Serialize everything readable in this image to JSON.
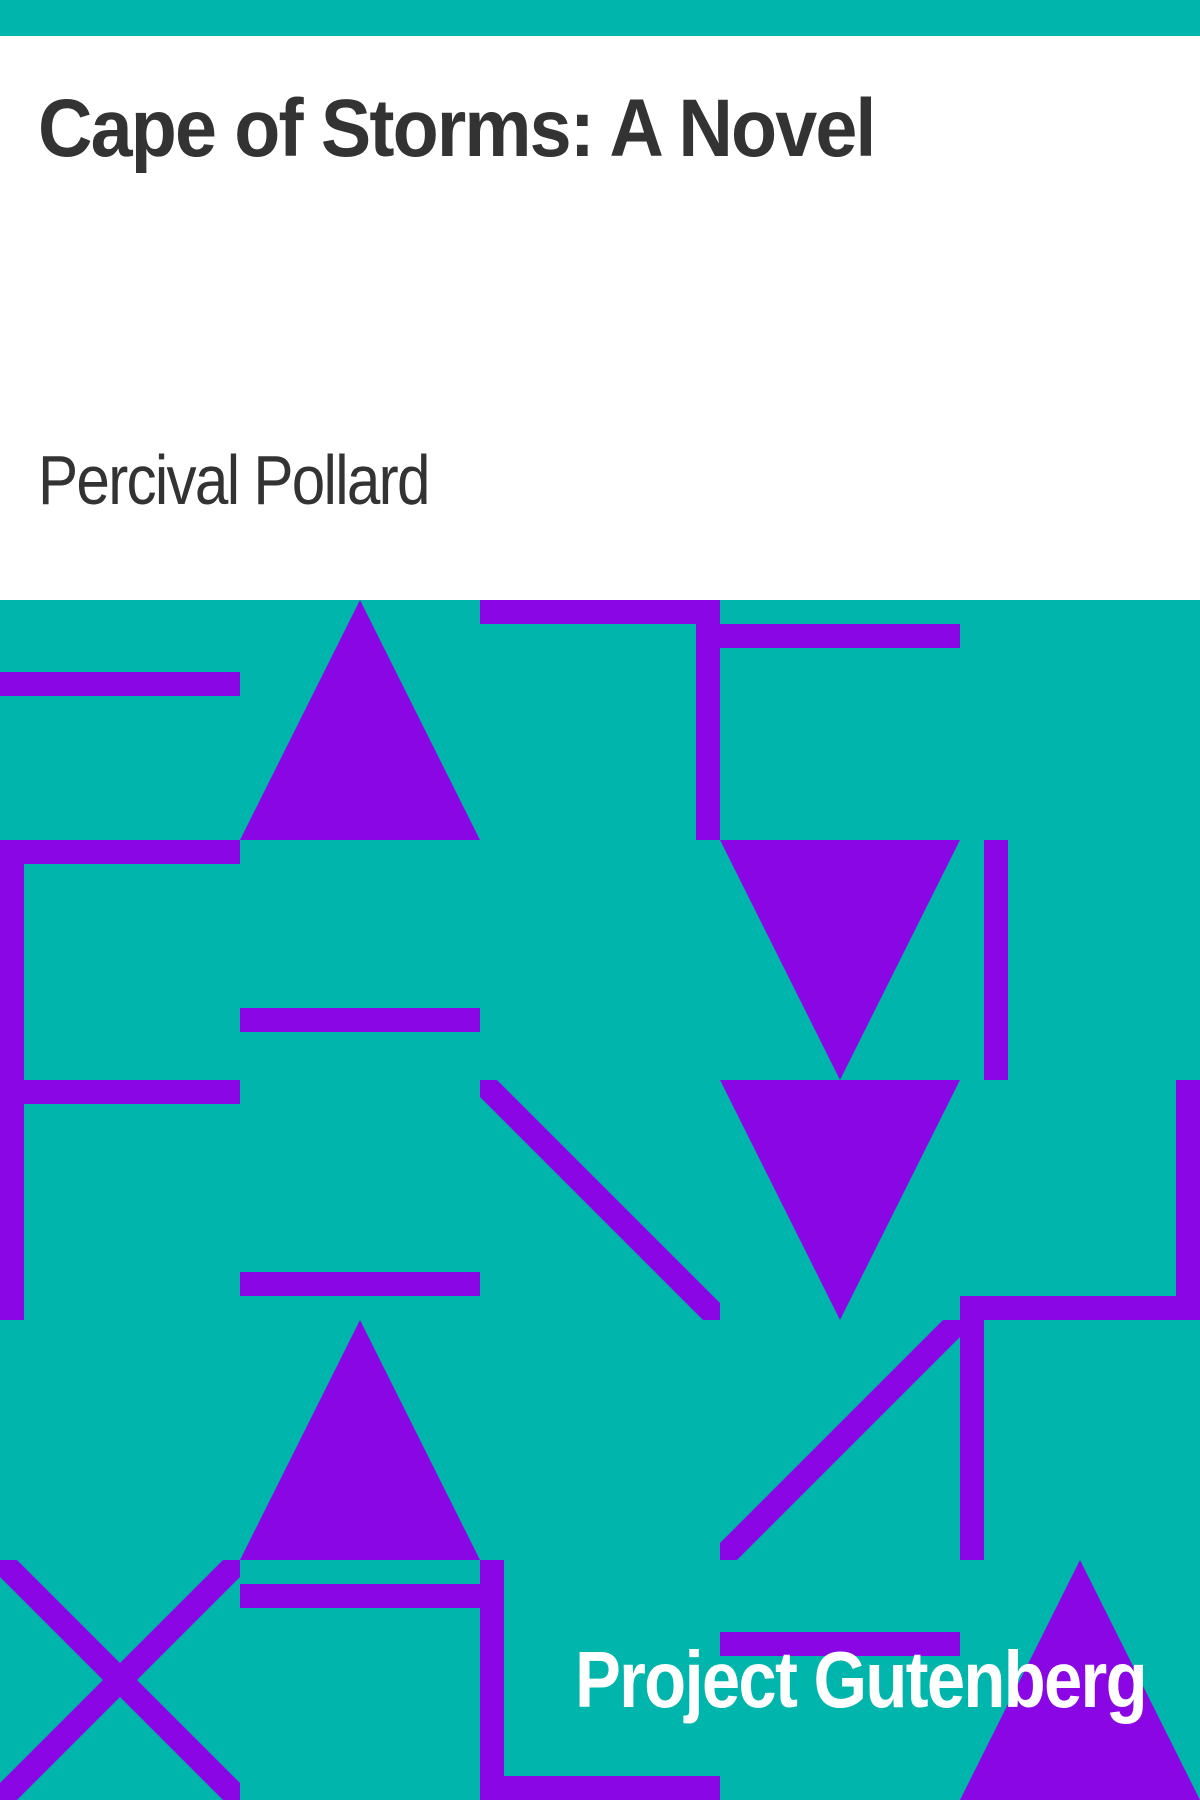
{
  "book": {
    "title": "Cape of Storms: A Novel",
    "author": "Percival Pollard"
  },
  "publisher": {
    "name": "Project Gutenberg"
  },
  "colors": {
    "background": "#00b5ab",
    "accent": "#8a06e4",
    "title_text": "#333333",
    "publisher_text": "#ffffff"
  }
}
